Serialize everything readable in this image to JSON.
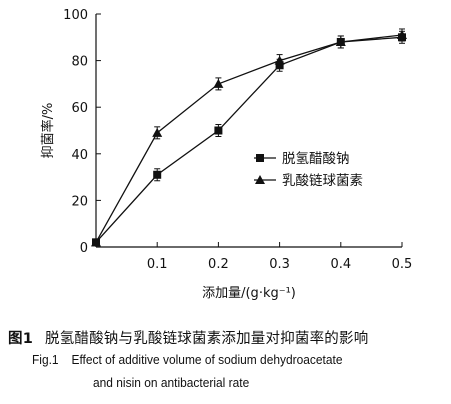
{
  "chart_data": {
    "type": "line",
    "title": "",
    "xlabel": "添加量/(g·kg⁻¹)",
    "ylabel": "抑菌率/%",
    "x": [
      0,
      0.1,
      0.2,
      0.3,
      0.4,
      0.5
    ],
    "x_tick_labels": [
      "0.1",
      "0.2",
      "0.3",
      "0.4",
      "0.5"
    ],
    "x_tick_values": [
      0.1,
      0.2,
      0.3,
      0.4,
      0.5
    ],
    "origin_label": "0",
    "y_tick_values": [
      20,
      40,
      60,
      80,
      100
    ],
    "y_tick_labels": [
      "20",
      "40",
      "60",
      "80",
      "100"
    ],
    "xlim": [
      0,
      0.5
    ],
    "ylim": [
      0,
      100
    ],
    "grid": false,
    "legend_position": "center-right",
    "series": [
      {
        "name": "脱氢醋酸钠",
        "marker": "square",
        "values": [
          2,
          31,
          50,
          78,
          88,
          90
        ]
      },
      {
        "name": "乳酸链球菌素",
        "marker": "triangle",
        "values": [
          2,
          49,
          70,
          80,
          88,
          91
        ]
      }
    ]
  },
  "caption": {
    "zh_label": "图1",
    "zh_text": "脱氢醋酸钠与乳酸链球菌素添加量对抑菌率的影响",
    "en_label": "Fig.1",
    "en_line1": "Effect of additive volume of sodium dehydroacetate",
    "en_line2": "and nisin on antibacterial rate"
  }
}
